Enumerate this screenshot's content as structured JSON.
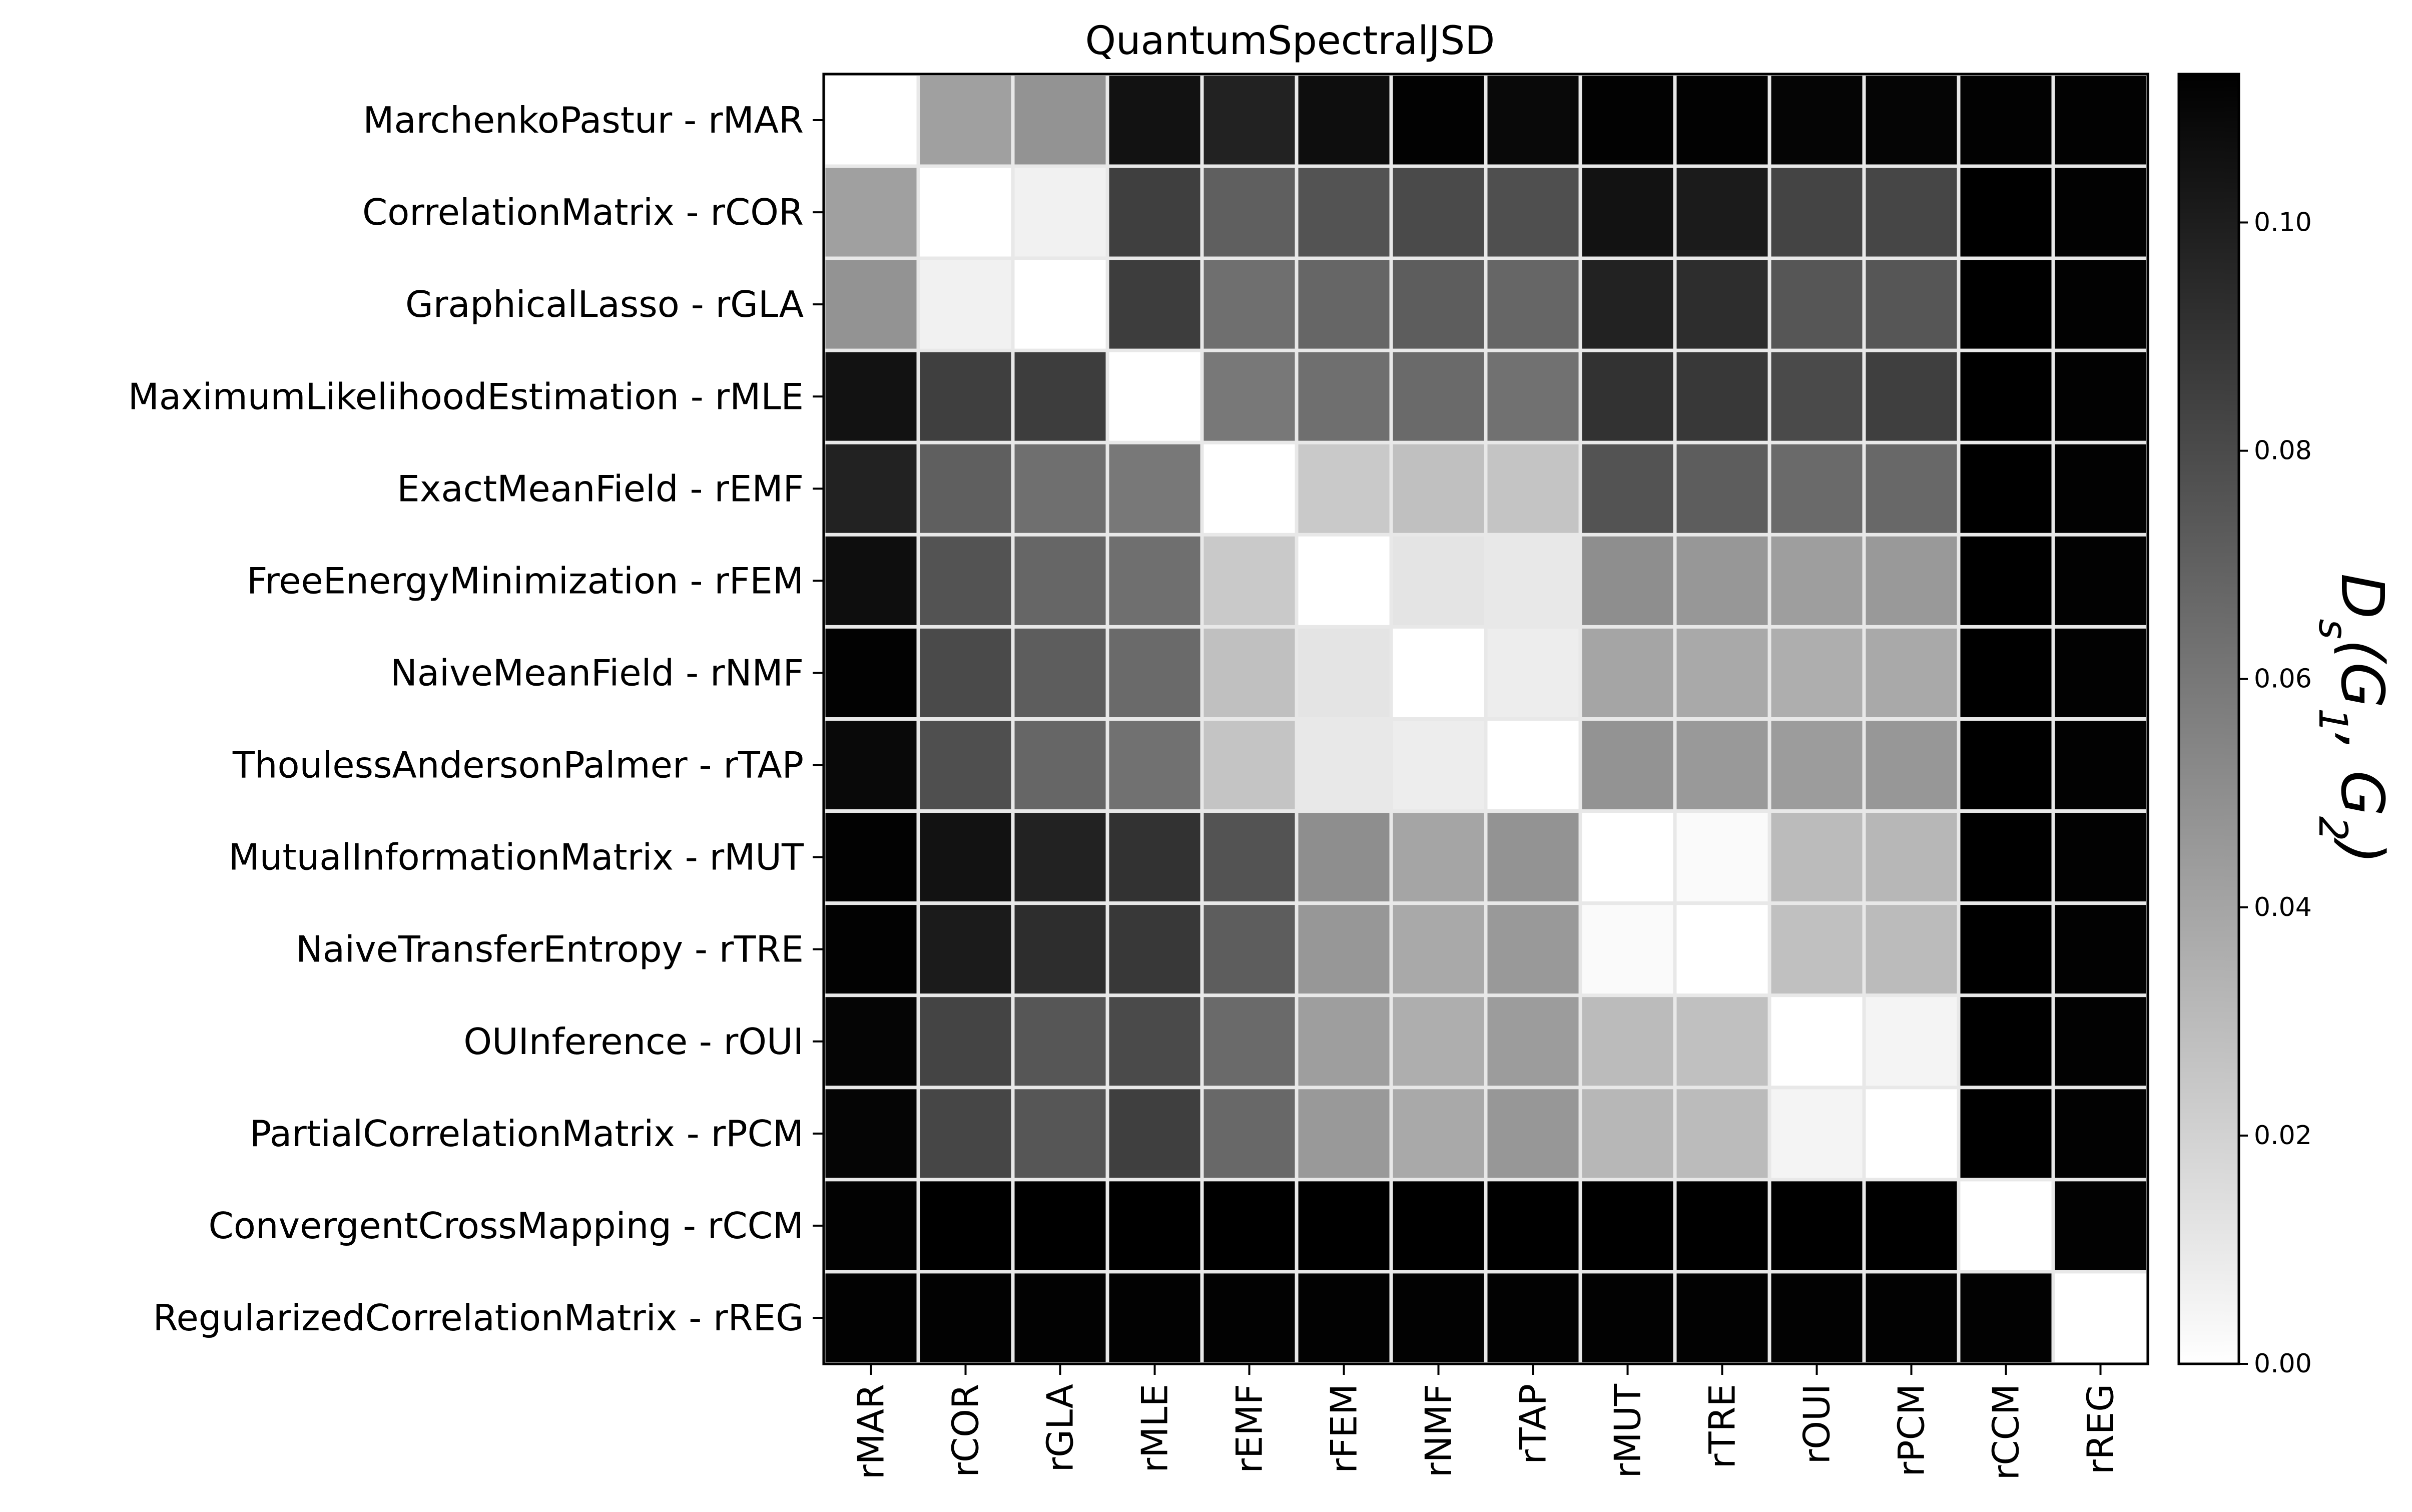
{
  "chart_data": {
    "type": "heatmap",
    "title": "QuantumSpectralJSD",
    "row_labels": [
      "MarchenkoPastur - rMAR",
      "CorrelationMatrix - rCOR",
      "GraphicalLasso - rGLA",
      "MaximumLikelihoodEstimation - rMLE",
      "ExactMeanField - rEMF",
      "FreeEnergyMinimization - rFEM",
      "NaiveMeanField - rNMF",
      "ThoulessAndersonPalmer - rTAP",
      "MutualInformationMatrix - rMUT",
      "NaiveTransferEntropy - rTRE",
      "OUInference - rOUI",
      "PartialCorrelationMatrix - rPCM",
      "ConvergentCrossMapping - rCCM",
      "RegularizedCorrelationMatrix - rREG"
    ],
    "col_labels": [
      "rMAR",
      "rCOR",
      "rGLA",
      "rMLE",
      "rEMF",
      "rFEM",
      "rNMF",
      "rTAP",
      "rMUT",
      "rTRE",
      "rOUI",
      "rPCM",
      "rCCM",
      "rREG"
    ],
    "values": [
      [
        0.0,
        0.042,
        0.048,
        0.105,
        0.098,
        0.107,
        0.112,
        0.109,
        0.112,
        0.112,
        0.111,
        0.111,
        0.112,
        0.112
      ],
      [
        0.042,
        0.0,
        0.006,
        0.085,
        0.071,
        0.076,
        0.08,
        0.078,
        0.105,
        0.101,
        0.083,
        0.082,
        0.113,
        0.112
      ],
      [
        0.048,
        0.006,
        0.0,
        0.086,
        0.064,
        0.068,
        0.072,
        0.068,
        0.098,
        0.093,
        0.075,
        0.075,
        0.113,
        0.112
      ],
      [
        0.105,
        0.085,
        0.086,
        0.0,
        0.06,
        0.064,
        0.066,
        0.063,
        0.091,
        0.088,
        0.08,
        0.085,
        0.113,
        0.112
      ],
      [
        0.098,
        0.071,
        0.064,
        0.06,
        0.0,
        0.024,
        0.028,
        0.026,
        0.076,
        0.072,
        0.066,
        0.067,
        0.113,
        0.112
      ],
      [
        0.107,
        0.076,
        0.068,
        0.064,
        0.024,
        0.0,
        0.012,
        0.01,
        0.05,
        0.046,
        0.043,
        0.045,
        0.113,
        0.112
      ],
      [
        0.112,
        0.08,
        0.072,
        0.066,
        0.028,
        0.012,
        0.0,
        0.008,
        0.04,
        0.038,
        0.036,
        0.038,
        0.113,
        0.112
      ],
      [
        0.109,
        0.078,
        0.068,
        0.063,
        0.026,
        0.01,
        0.008,
        0.0,
        0.048,
        0.045,
        0.044,
        0.046,
        0.113,
        0.112
      ],
      [
        0.112,
        0.105,
        0.098,
        0.091,
        0.076,
        0.05,
        0.04,
        0.048,
        0.0,
        0.002,
        0.03,
        0.032,
        0.113,
        0.112
      ],
      [
        0.112,
        0.101,
        0.093,
        0.088,
        0.072,
        0.046,
        0.038,
        0.045,
        0.002,
        0.0,
        0.028,
        0.03,
        0.113,
        0.112
      ],
      [
        0.111,
        0.083,
        0.075,
        0.08,
        0.066,
        0.043,
        0.036,
        0.044,
        0.03,
        0.028,
        0.0,
        0.005,
        0.113,
        0.112
      ],
      [
        0.111,
        0.082,
        0.075,
        0.085,
        0.067,
        0.045,
        0.038,
        0.046,
        0.032,
        0.03,
        0.005,
        0.0,
        0.113,
        0.112
      ],
      [
        0.112,
        0.113,
        0.113,
        0.113,
        0.113,
        0.113,
        0.113,
        0.113,
        0.113,
        0.113,
        0.113,
        0.113,
        0.0,
        0.112
      ],
      [
        0.112,
        0.112,
        0.112,
        0.112,
        0.112,
        0.112,
        0.112,
        0.112,
        0.112,
        0.112,
        0.112,
        0.112,
        0.112,
        0.0
      ]
    ],
    "colorbar": {
      "label": "D_s(G_1, G_2)",
      "range": [
        0.0,
        0.113
      ],
      "ticks": [
        0.0,
        0.02,
        0.04,
        0.06,
        0.08,
        0.1
      ],
      "tick_labels": [
        "0.00",
        "0.02",
        "0.04",
        "0.06",
        "0.08",
        "0.10"
      ],
      "colormap": "grayscale white-to-black",
      "low_color": "#ffffff",
      "high_color": "#000000"
    },
    "grid": true,
    "cell_border_color": "#e8e8e8"
  }
}
